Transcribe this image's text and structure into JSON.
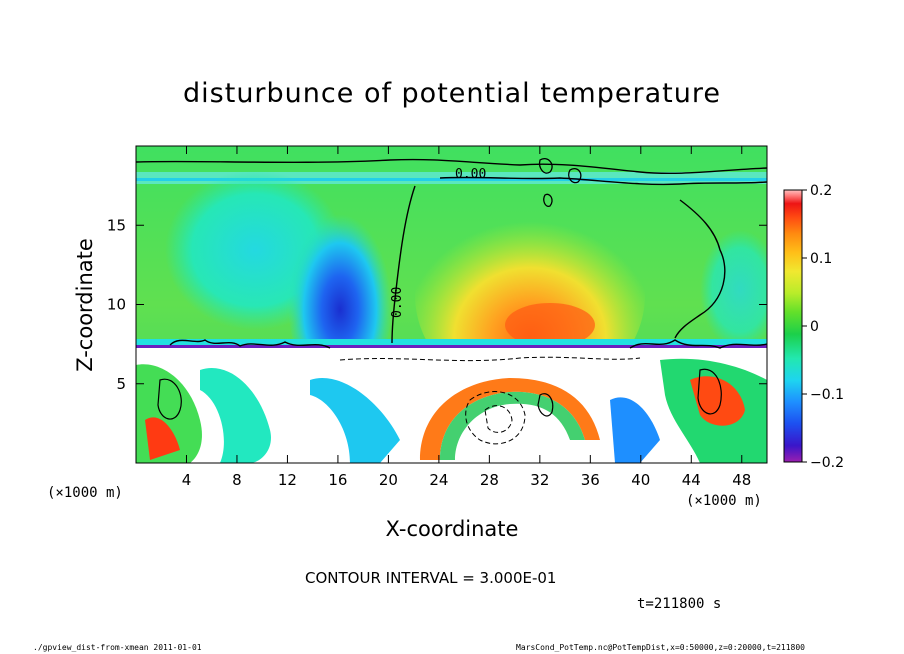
{
  "chart_data": {
    "type": "heatmap",
    "title": "disturbunce of potential temperature",
    "xlabel": "X-coordinate",
    "ylabel": "Z-coordinate",
    "x_unit": "(×1000 m)",
    "z_unit": "(×1000 m)",
    "xlim": [
      0,
      50
    ],
    "ylim": [
      0,
      20
    ],
    "x_ticks": [
      4,
      8,
      12,
      16,
      20,
      24,
      28,
      32,
      36,
      40,
      44,
      48
    ],
    "y_ticks": [
      5,
      10,
      15
    ],
    "colorbar": {
      "range": [
        -0.2,
        0.2
      ],
      "ticks": [
        {
          "value": 0.2,
          "label": "0.2"
        },
        {
          "value": 0.1,
          "label": "0.1"
        },
        {
          "value": 0,
          "label": "0"
        },
        {
          "value": -0.1,
          "label": "−0.1"
        },
        {
          "value": -0.2,
          "label": "−0.2"
        }
      ]
    },
    "contour_interval_text": "CONTOUR INTERVAL = 3.000E-01",
    "contour_labels": [
      "0.00",
      "0.00"
    ],
    "regions": [
      {
        "name": "cold anomaly",
        "x": 15.5,
        "z": 10.5,
        "value": -0.15
      },
      {
        "name": "warm anomaly",
        "x": 33,
        "z": 11,
        "value": 0.13
      },
      {
        "name": "upper layer",
        "x": 25,
        "z": 17,
        "value": 0.0
      }
    ]
  },
  "annotations": {
    "time": "t=211800 s",
    "footer_left": "./gpview_dist-from-xmean  2011-01-01",
    "footer_right": "MarsCond_PotTemp.nc@PotTempDist,x=0:50000,z=0:20000,t=211800"
  },
  "colors": {
    "colorbar": [
      "#9b1fb0",
      "#3a15c9",
      "#1d4ff0",
      "#1e8fff",
      "#1ed4f0",
      "#22e8b0",
      "#1cd04a",
      "#62e02a",
      "#b8ec2a",
      "#f0e830",
      "#ffbf18",
      "#ff8a10",
      "#ff4a12",
      "#ee1414",
      "#ff7d7d",
      "#ffc0c0"
    ]
  }
}
